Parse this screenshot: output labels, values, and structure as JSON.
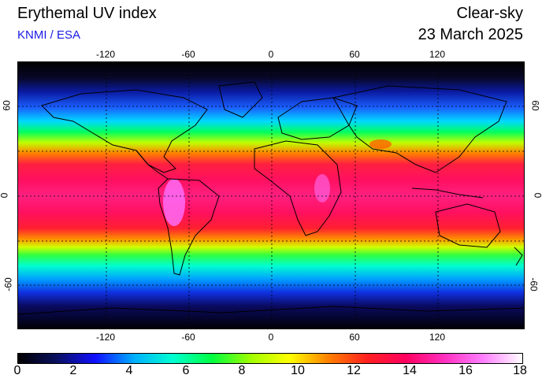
{
  "header": {
    "title": "Erythemal UV index",
    "credit": "KNMI / ESA",
    "condition": "Clear-sky",
    "date": "23 March 2025"
  },
  "map": {
    "lon_ticks": [
      "-120",
      "-60",
      "0",
      "60",
      "120"
    ],
    "lat_ticks": [
      "60",
      "0",
      "-60"
    ],
    "grid": true,
    "projection": "equirectangular"
  },
  "colorbar": {
    "labels": [
      "0",
      "2",
      "4",
      "6",
      "8",
      "10",
      "12",
      "14",
      "16",
      "18"
    ],
    "min": 0,
    "max": 18,
    "stops": [
      "#000000",
      "#0a1060",
      "#1010ff",
      "#00b0ff",
      "#00ffd0",
      "#00ff40",
      "#a0ff00",
      "#ffff00",
      "#ff8000",
      "#ff2020",
      "#ff0060",
      "#ff30c0",
      "#ff80ff",
      "#ffffff"
    ]
  }
}
